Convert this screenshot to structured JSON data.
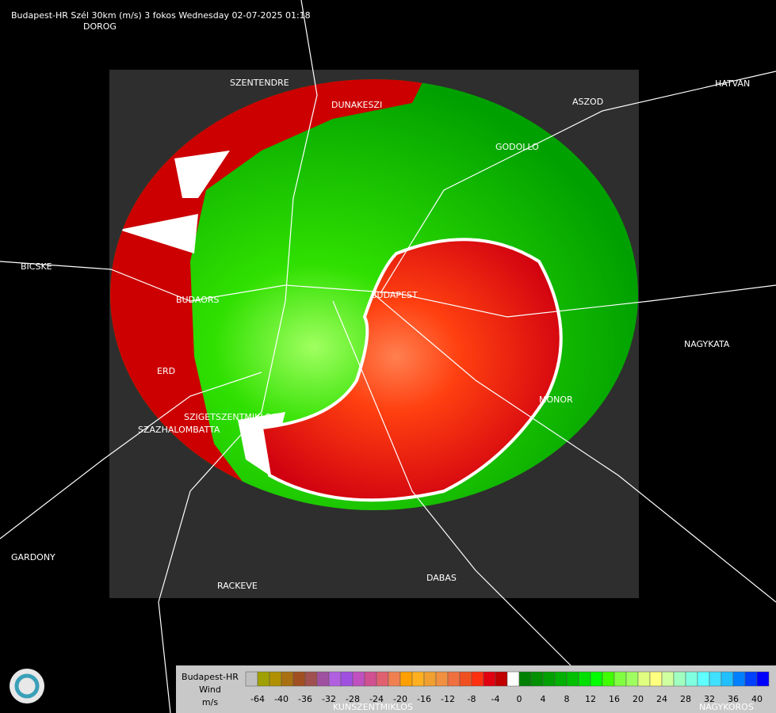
{
  "header": {
    "title": "Budapest-HR Szél 30km (m/s) 3 fokos Wednesday 02-07-2025 01:18"
  },
  "places": [
    "DOROG",
    "SZENTENDRE",
    "DUNAKESZI",
    "ASZOD",
    "HATVAN",
    "GODOLLO",
    "BICSKE",
    "BUDAORS",
    "BUDAPEST",
    "NAGYKATA",
    "ERD",
    "SZIGETSZENTMIKLOS",
    "SZAZHALOMBATTA",
    "MONOR",
    "GARDONY",
    "RACKEVE",
    "DABAS",
    "KUNSZENTMIKLOS",
    "NAGYKOROS"
  ],
  "legend": {
    "station": "Budapest-HR",
    "quantity": "Wind",
    "unit": "m/s",
    "ticks": [
      -64,
      -40,
      -36,
      -32,
      -28,
      -24,
      -20,
      -16,
      -12,
      -8,
      -4,
      0,
      4,
      8,
      12,
      16,
      20,
      24,
      28,
      32,
      36,
      40
    ],
    "colors": [
      "#c0c0c0",
      "#a0a000",
      "#b09000",
      "#a87010",
      "#a05020",
      "#a05050",
      "#a050a0",
      "#b060e0",
      "#a050e0",
      "#c050c0",
      "#d05090",
      "#e06070",
      "#f08050",
      "#ffa000",
      "#ffb020",
      "#f0a030",
      "#f09040",
      "#f07040",
      "#f05020",
      "#ff3010",
      "#e00010",
      "#c00000",
      "#ffffff",
      "#008000",
      "#009000",
      "#00a000",
      "#00b000",
      "#00c000",
      "#00e000",
      "#00ff00",
      "#40ff00",
      "#80ff40",
      "#a0ff60",
      "#e0ff80",
      "#ffff80",
      "#d0ffa0",
      "#a0ffc0",
      "#80ffe0",
      "#60ffff",
      "#40e0ff",
      "#20c0ff",
      "#0080ff",
      "#0040ff",
      "#0000ff"
    ]
  }
}
